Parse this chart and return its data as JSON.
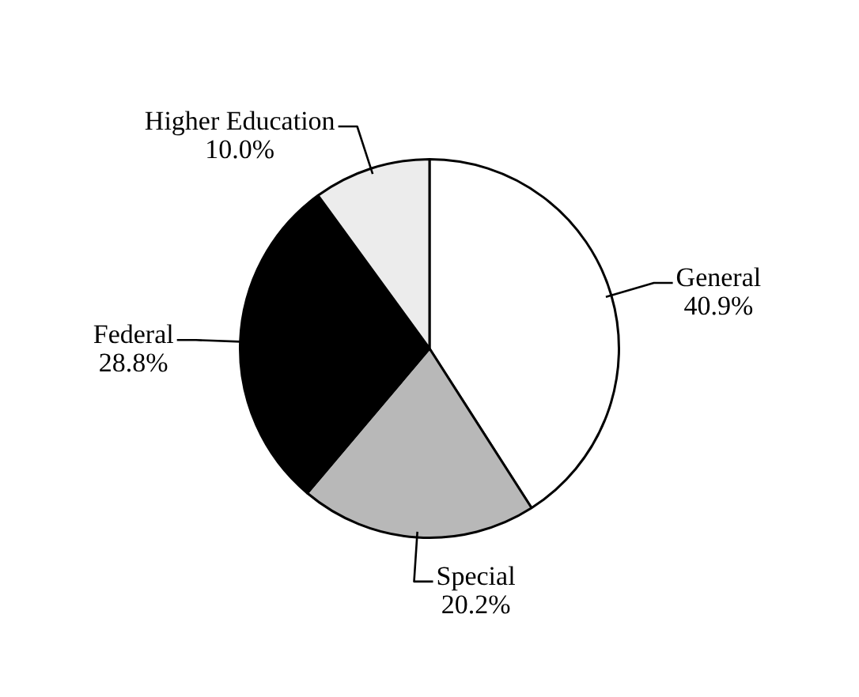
{
  "chart_data": {
    "type": "pie",
    "categories": [
      "General",
      "Special",
      "Federal",
      "Higher Education"
    ],
    "values": [
      40.9,
      20.2,
      28.8,
      10.0
    ],
    "value_labels": [
      "40.9%",
      "20.2%",
      "28.8%",
      "10.0%"
    ],
    "colors": [
      "#ffffff",
      "#b8b8b8",
      "#000000",
      "#ececec"
    ],
    "legend": false
  }
}
